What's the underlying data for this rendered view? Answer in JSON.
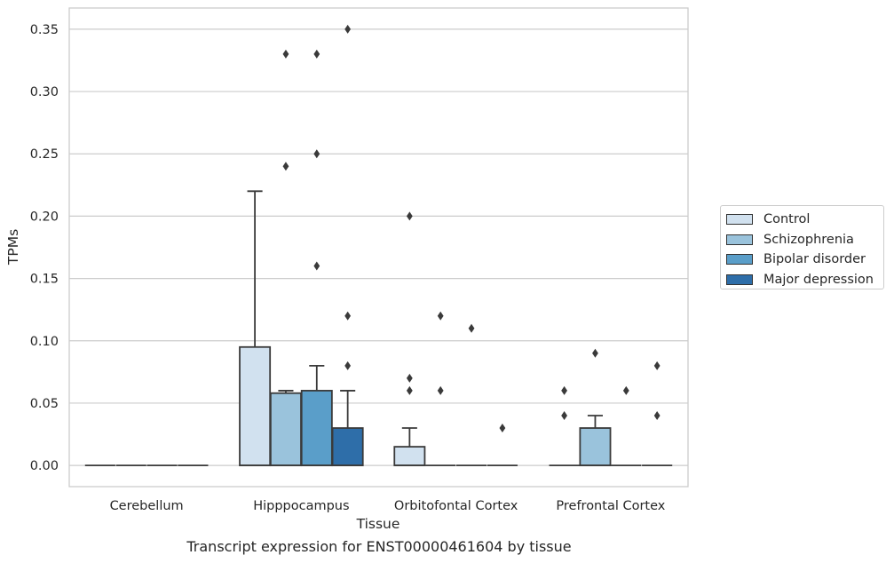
{
  "caption": "Transcript expression for ENST00000461604 by tissue",
  "chart_data": {
    "type": "box",
    "title": "",
    "xlabel": "Tissue",
    "ylabel": "TPMs",
    "ylim": [
      -0.017,
      0.367
    ],
    "yticks": [
      0.0,
      0.05,
      0.1,
      0.15,
      0.2,
      0.25,
      0.3,
      0.35
    ],
    "ytick_labels": [
      "0.00",
      "0.05",
      "0.10",
      "0.15",
      "0.20",
      "0.25",
      "0.30",
      "0.35"
    ],
    "grid": "horizontal",
    "legend_position": "right",
    "categories": [
      "Cerebellum",
      "Hipppocampus",
      "Orbitofontal Cortex",
      "Prefrontal Cortex"
    ],
    "series": [
      {
        "name": "Control",
        "color": "#d1e1ef",
        "boxes": [
          {
            "min": 0,
            "q1": 0,
            "median": 0,
            "q3": 0,
            "max": 0,
            "outliers": []
          },
          {
            "min": 0,
            "q1": 0,
            "median": 0,
            "q3": 0.095,
            "max": 0.22,
            "outliers": []
          },
          {
            "min": 0,
            "q1": 0,
            "median": 0,
            "q3": 0.015,
            "max": 0.03,
            "outliers": [
              0.06,
              0.07,
              0.2
            ]
          },
          {
            "min": 0,
            "q1": 0,
            "median": 0,
            "q3": 0,
            "max": 0,
            "outliers": [
              0.04,
              0.06
            ]
          }
        ]
      },
      {
        "name": "Schizophrenia",
        "color": "#9ac3dc",
        "boxes": [
          {
            "min": 0,
            "q1": 0,
            "median": 0,
            "q3": 0,
            "max": 0,
            "outliers": []
          },
          {
            "min": 0,
            "q1": 0,
            "median": 0,
            "q3": 0.058,
            "max": 0.06,
            "outliers": [
              0.24,
              0.33
            ]
          },
          {
            "min": 0,
            "q1": 0,
            "median": 0,
            "q3": 0,
            "max": 0,
            "outliers": [
              0.06,
              0.12
            ]
          },
          {
            "min": 0,
            "q1": 0,
            "median": 0,
            "q3": 0.03,
            "max": 0.04,
            "outliers": [
              0.09
            ]
          }
        ]
      },
      {
        "name": "Bipolar disorder",
        "color": "#5a9ec9",
        "boxes": [
          {
            "min": 0,
            "q1": 0,
            "median": 0,
            "q3": 0,
            "max": 0,
            "outliers": []
          },
          {
            "min": 0,
            "q1": 0,
            "median": 0,
            "q3": 0.06,
            "max": 0.08,
            "outliers": [
              0.16,
              0.25,
              0.33
            ]
          },
          {
            "min": 0,
            "q1": 0,
            "median": 0,
            "q3": 0,
            "max": 0,
            "outliers": [
              0.11
            ]
          },
          {
            "min": 0,
            "q1": 0,
            "median": 0,
            "q3": 0,
            "max": 0,
            "outliers": [
              0.06
            ]
          }
        ]
      },
      {
        "name": "Major depression",
        "color": "#2e6ea9",
        "boxes": [
          {
            "min": 0,
            "q1": 0,
            "median": 0,
            "q3": 0,
            "max": 0,
            "outliers": []
          },
          {
            "min": 0,
            "q1": 0,
            "median": 0,
            "q3": 0.03,
            "max": 0.06,
            "outliers": [
              0.08,
              0.12,
              0.35
            ]
          },
          {
            "min": 0,
            "q1": 0,
            "median": 0,
            "q3": 0,
            "max": 0,
            "outliers": [
              0.03
            ]
          },
          {
            "min": 0,
            "q1": 0,
            "median": 0,
            "q3": 0,
            "max": 0,
            "outliers": [
              0.04,
              0.08
            ]
          }
        ]
      }
    ]
  }
}
